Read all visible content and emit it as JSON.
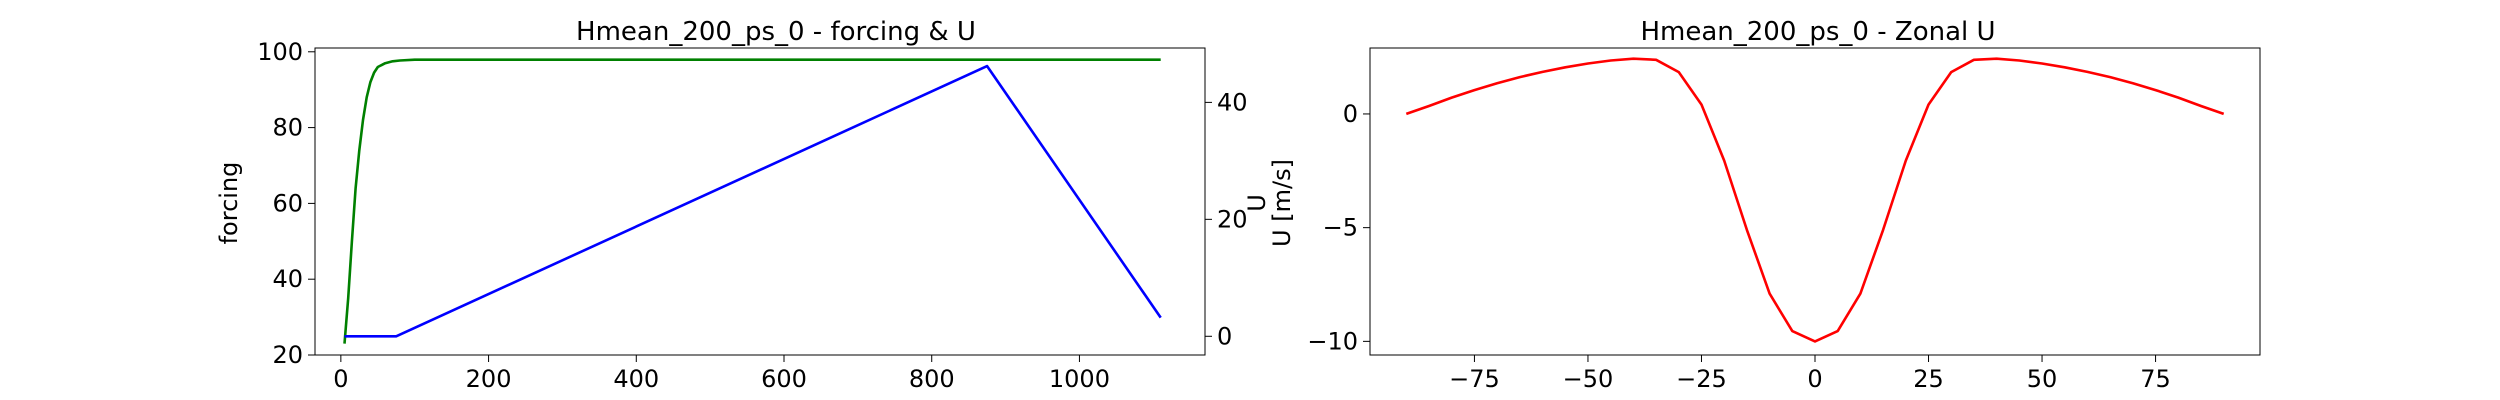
{
  "chart_data": [
    {
      "type": "line",
      "title": "Hmean_200_ps_0 - forcing & U",
      "xlabel": "",
      "ylabel": "forcing",
      "y2label": "U",
      "xlim": [
        -35,
        1170
      ],
      "ylim": [
        20,
        101
      ],
      "y2lim": [
        -3.2,
        49.3
      ],
      "x_ticks": [
        0,
        200,
        400,
        600,
        800,
        1000
      ],
      "y_ticks": [
        20,
        40,
        60,
        80,
        100
      ],
      "y2_ticks": [
        0,
        20,
        40
      ],
      "grid": false,
      "series": [
        {
          "axis": "left",
          "color": "#008000",
          "x": [
            5,
            10,
            15,
            20,
            25,
            30,
            35,
            40,
            45,
            50,
            60,
            70,
            80,
            100,
            120,
            150,
            200,
            300,
            500,
            800,
            1110
          ],
          "y": [
            23,
            35,
            50,
            64,
            74,
            82,
            88,
            92,
            94.5,
            96,
            97,
            97.5,
            97.7,
            97.9,
            97.9,
            97.9,
            97.9,
            97.9,
            97.9,
            97.9,
            97.9
          ]
        },
        {
          "axis": "right",
          "color": "#0000ff",
          "x": [
            5,
            75,
            875,
            1110
          ],
          "y": [
            0,
            0,
            46.2,
            3.2
          ]
        }
      ]
    },
    {
      "type": "line",
      "title": "Hmean_200_ps_0 - Zonal U",
      "xlabel": "",
      "ylabel": "U [m/s]",
      "xlim": [
        -98,
        98
      ],
      "ylim": [
        -10.6,
        2.9
      ],
      "x_ticks": [
        -75,
        -50,
        -25,
        0,
        25,
        50,
        75
      ],
      "y_ticks": [
        -10,
        -5,
        0
      ],
      "grid": false,
      "series": [
        {
          "color": "#ff0000",
          "x": [
            -90,
            -85,
            -80,
            -75,
            -70,
            -65,
            -60,
            -55,
            -50,
            -45,
            -40,
            -35,
            -30,
            -25,
            -20,
            -15,
            -10,
            -5,
            0,
            5,
            10,
            15,
            20,
            25,
            30,
            35,
            40,
            45,
            50,
            55,
            60,
            65,
            70,
            75,
            80,
            85,
            90
          ],
          "y": [
            0,
            0.35,
            0.72,
            1.05,
            1.35,
            1.62,
            1.85,
            2.05,
            2.22,
            2.35,
            2.43,
            2.38,
            1.84,
            0.41,
            -2.05,
            -5.1,
            -7.9,
            -9.55,
            -10,
            -9.55,
            -7.9,
            -5.1,
            -2.05,
            0.41,
            1.84,
            2.38,
            2.43,
            2.35,
            2.22,
            2.05,
            1.85,
            1.62,
            1.35,
            1.05,
            0.72,
            0.35,
            0
          ]
        }
      ]
    }
  ]
}
